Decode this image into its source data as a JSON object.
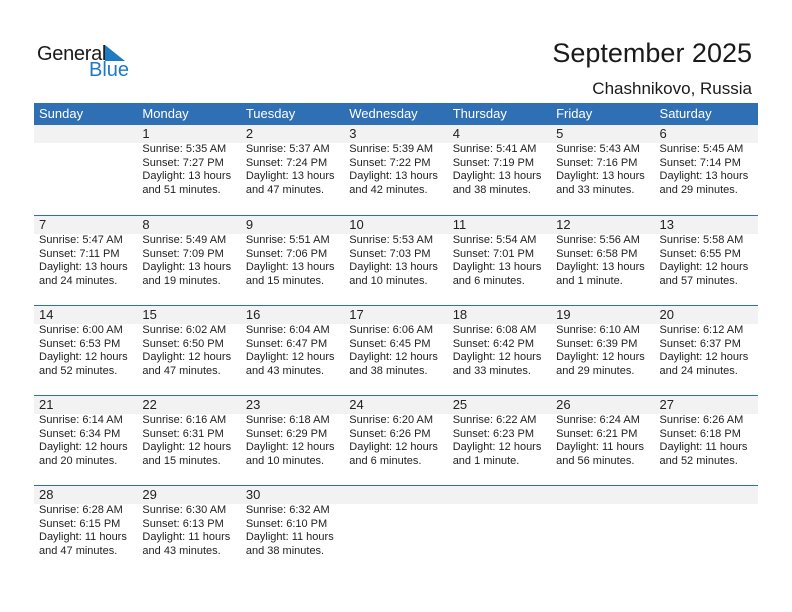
{
  "logo": {
    "general": "General",
    "blue": "Blue",
    "accent": "#1f7ac4"
  },
  "title": "September 2025",
  "location": "Chashnikovo, Russia",
  "colors": {
    "header": "#2f6fb3",
    "band": "#f2f2f2"
  },
  "days": [
    "Sunday",
    "Monday",
    "Tuesday",
    "Wednesday",
    "Thursday",
    "Friday",
    "Saturday"
  ],
  "weeks": [
    [
      null,
      {
        "day": "1",
        "sunrise": "Sunrise: 5:35 AM",
        "sunset": "Sunset: 7:27 PM",
        "daylight1": "Daylight: 13 hours",
        "daylight2": "and 51 minutes."
      },
      {
        "day": "2",
        "sunrise": "Sunrise: 5:37 AM",
        "sunset": "Sunset: 7:24 PM",
        "daylight1": "Daylight: 13 hours",
        "daylight2": "and 47 minutes."
      },
      {
        "day": "3",
        "sunrise": "Sunrise: 5:39 AM",
        "sunset": "Sunset: 7:22 PM",
        "daylight1": "Daylight: 13 hours",
        "daylight2": "and 42 minutes."
      },
      {
        "day": "4",
        "sunrise": "Sunrise: 5:41 AM",
        "sunset": "Sunset: 7:19 PM",
        "daylight1": "Daylight: 13 hours",
        "daylight2": "and 38 minutes."
      },
      {
        "day": "5",
        "sunrise": "Sunrise: 5:43 AM",
        "sunset": "Sunset: 7:16 PM",
        "daylight1": "Daylight: 13 hours",
        "daylight2": "and 33 minutes."
      },
      {
        "day": "6",
        "sunrise": "Sunrise: 5:45 AM",
        "sunset": "Sunset: 7:14 PM",
        "daylight1": "Daylight: 13 hours",
        "daylight2": "and 29 minutes."
      }
    ],
    [
      {
        "day": "7",
        "sunrise": "Sunrise: 5:47 AM",
        "sunset": "Sunset: 7:11 PM",
        "daylight1": "Daylight: 13 hours",
        "daylight2": "and 24 minutes."
      },
      {
        "day": "8",
        "sunrise": "Sunrise: 5:49 AM",
        "sunset": "Sunset: 7:09 PM",
        "daylight1": "Daylight: 13 hours",
        "daylight2": "and 19 minutes."
      },
      {
        "day": "9",
        "sunrise": "Sunrise: 5:51 AM",
        "sunset": "Sunset: 7:06 PM",
        "daylight1": "Daylight: 13 hours",
        "daylight2": "and 15 minutes."
      },
      {
        "day": "10",
        "sunrise": "Sunrise: 5:53 AM",
        "sunset": "Sunset: 7:03 PM",
        "daylight1": "Daylight: 13 hours",
        "daylight2": "and 10 minutes."
      },
      {
        "day": "11",
        "sunrise": "Sunrise: 5:54 AM",
        "sunset": "Sunset: 7:01 PM",
        "daylight1": "Daylight: 13 hours",
        "daylight2": "and 6 minutes."
      },
      {
        "day": "12",
        "sunrise": "Sunrise: 5:56 AM",
        "sunset": "Sunset: 6:58 PM",
        "daylight1": "Daylight: 13 hours",
        "daylight2": "and 1 minute."
      },
      {
        "day": "13",
        "sunrise": "Sunrise: 5:58 AM",
        "sunset": "Sunset: 6:55 PM",
        "daylight1": "Daylight: 12 hours",
        "daylight2": "and 57 minutes."
      }
    ],
    [
      {
        "day": "14",
        "sunrise": "Sunrise: 6:00 AM",
        "sunset": "Sunset: 6:53 PM",
        "daylight1": "Daylight: 12 hours",
        "daylight2": "and 52 minutes."
      },
      {
        "day": "15",
        "sunrise": "Sunrise: 6:02 AM",
        "sunset": "Sunset: 6:50 PM",
        "daylight1": "Daylight: 12 hours",
        "daylight2": "and 47 minutes."
      },
      {
        "day": "16",
        "sunrise": "Sunrise: 6:04 AM",
        "sunset": "Sunset: 6:47 PM",
        "daylight1": "Daylight: 12 hours",
        "daylight2": "and 43 minutes."
      },
      {
        "day": "17",
        "sunrise": "Sunrise: 6:06 AM",
        "sunset": "Sunset: 6:45 PM",
        "daylight1": "Daylight: 12 hours",
        "daylight2": "and 38 minutes."
      },
      {
        "day": "18",
        "sunrise": "Sunrise: 6:08 AM",
        "sunset": "Sunset: 6:42 PM",
        "daylight1": "Daylight: 12 hours",
        "daylight2": "and 33 minutes."
      },
      {
        "day": "19",
        "sunrise": "Sunrise: 6:10 AM",
        "sunset": "Sunset: 6:39 PM",
        "daylight1": "Daylight: 12 hours",
        "daylight2": "and 29 minutes."
      },
      {
        "day": "20",
        "sunrise": "Sunrise: 6:12 AM",
        "sunset": "Sunset: 6:37 PM",
        "daylight1": "Daylight: 12 hours",
        "daylight2": "and 24 minutes."
      }
    ],
    [
      {
        "day": "21",
        "sunrise": "Sunrise: 6:14 AM",
        "sunset": "Sunset: 6:34 PM",
        "daylight1": "Daylight: 12 hours",
        "daylight2": "and 20 minutes."
      },
      {
        "day": "22",
        "sunrise": "Sunrise: 6:16 AM",
        "sunset": "Sunset: 6:31 PM",
        "daylight1": "Daylight: 12 hours",
        "daylight2": "and 15 minutes."
      },
      {
        "day": "23",
        "sunrise": "Sunrise: 6:18 AM",
        "sunset": "Sunset: 6:29 PM",
        "daylight1": "Daylight: 12 hours",
        "daylight2": "and 10 minutes."
      },
      {
        "day": "24",
        "sunrise": "Sunrise: 6:20 AM",
        "sunset": "Sunset: 6:26 PM",
        "daylight1": "Daylight: 12 hours",
        "daylight2": "and 6 minutes."
      },
      {
        "day": "25",
        "sunrise": "Sunrise: 6:22 AM",
        "sunset": "Sunset: 6:23 PM",
        "daylight1": "Daylight: 12 hours",
        "daylight2": "and 1 minute."
      },
      {
        "day": "26",
        "sunrise": "Sunrise: 6:24 AM",
        "sunset": "Sunset: 6:21 PM",
        "daylight1": "Daylight: 11 hours",
        "daylight2": "and 56 minutes."
      },
      {
        "day": "27",
        "sunrise": "Sunrise: 6:26 AM",
        "sunset": "Sunset: 6:18 PM",
        "daylight1": "Daylight: 11 hours",
        "daylight2": "and 52 minutes."
      }
    ],
    [
      {
        "day": "28",
        "sunrise": "Sunrise: 6:28 AM",
        "sunset": "Sunset: 6:15 PM",
        "daylight1": "Daylight: 11 hours",
        "daylight2": "and 47 minutes."
      },
      {
        "day": "29",
        "sunrise": "Sunrise: 6:30 AM",
        "sunset": "Sunset: 6:13 PM",
        "daylight1": "Daylight: 11 hours",
        "daylight2": "and 43 minutes."
      },
      {
        "day": "30",
        "sunrise": "Sunrise: 6:32 AM",
        "sunset": "Sunset: 6:10 PM",
        "daylight1": "Daylight: 11 hours",
        "daylight2": "and 38 minutes."
      },
      null,
      null,
      null,
      null
    ]
  ]
}
